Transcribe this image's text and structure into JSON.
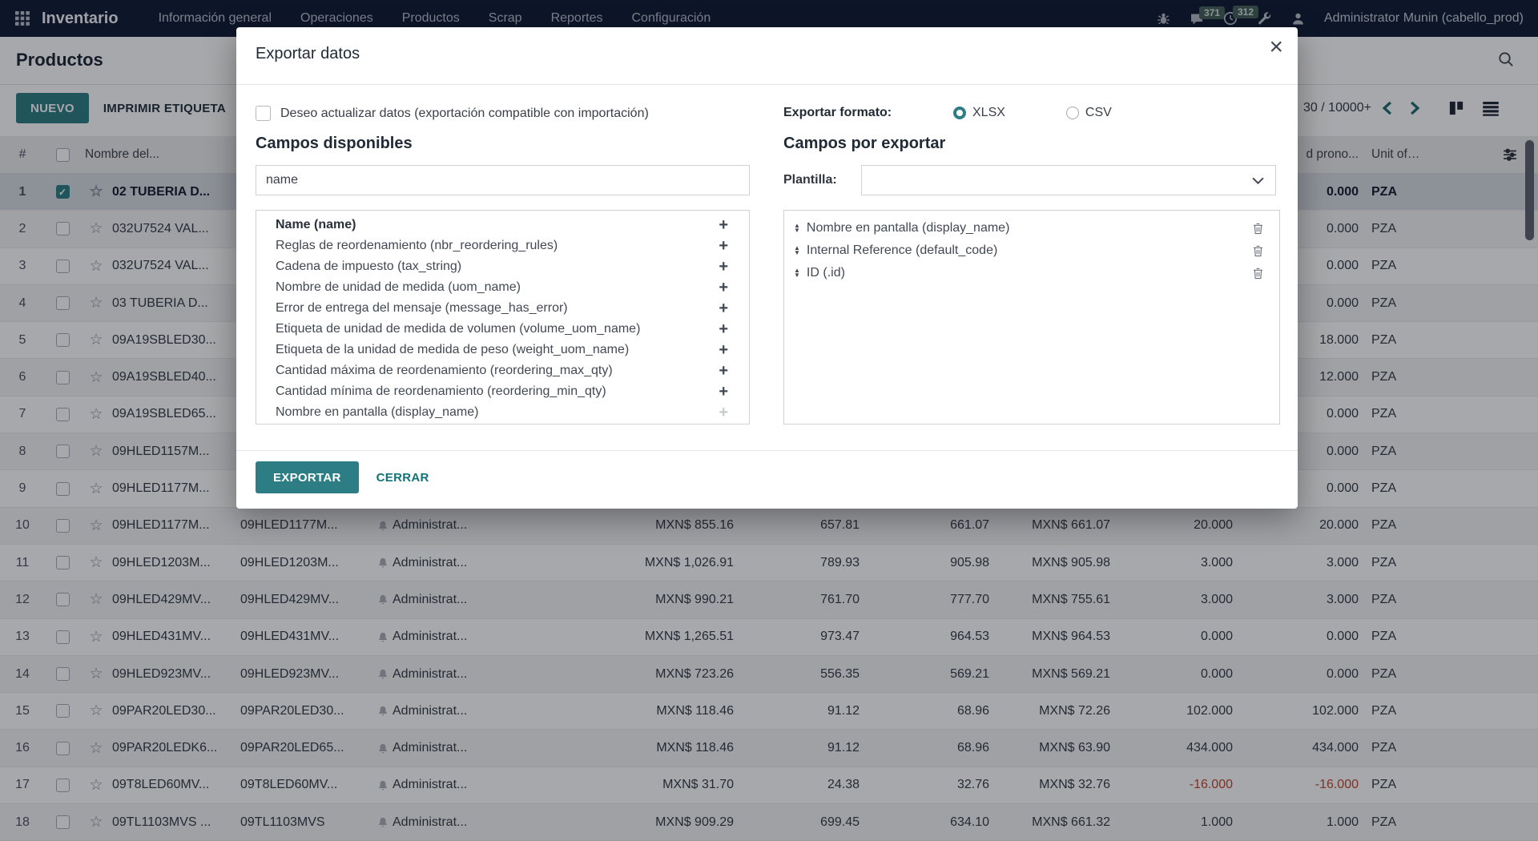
{
  "navbar": {
    "brand": "Inventario",
    "menu": [
      "Información general",
      "Operaciones",
      "Productos",
      "Scrap",
      "Reportes",
      "Configuración"
    ],
    "messages_badge": "371",
    "activities_badge": "312",
    "user": "Administrator Munin (cabello_prod)"
  },
  "page": {
    "title": "Productos",
    "new_button": "NUEVO",
    "print_label_button": "IMPRIMIR ETIQUETA",
    "pager": "30 / 10000+"
  },
  "table": {
    "headers": {
      "index": "#",
      "name": "Nombre del...",
      "forecast": "d prono...",
      "uom": "Unit of Mea..."
    },
    "rows": [
      {
        "n": 1,
        "name1": "02 TUBERIA D...",
        "forecast": "0.000",
        "uom": "PZA",
        "checked": true,
        "selected": true
      },
      {
        "n": 2,
        "name1": "032U7524 VAL...",
        "forecast": "0.000",
        "uom": "PZA"
      },
      {
        "n": 3,
        "name1": "032U7524 VAL...",
        "forecast": "0.000",
        "uom": "PZA"
      },
      {
        "n": 4,
        "name1": "03 TUBERIA D...",
        "forecast": "0.000",
        "uom": "PZA"
      },
      {
        "n": 5,
        "name1": "09A19SBLED30...",
        "forecast": "18.000",
        "uom": "PZA"
      },
      {
        "n": 6,
        "name1": "09A19SBLED40...",
        "forecast": "12.000",
        "uom": "PZA"
      },
      {
        "n": 7,
        "name1": "09A19SBLED65...",
        "forecast": "0.000",
        "uom": "PZA"
      },
      {
        "n": 8,
        "name1": "09HLED1157M...",
        "forecast": "0.000",
        "uom": "PZA"
      },
      {
        "n": 9,
        "name1": "09HLED1177M...",
        "forecast": "0.000",
        "uom": "PZA"
      },
      {
        "n": 10,
        "name1": "09HLED1177M...",
        "name2": "09HLED1177M...",
        "resp": "Administrat...",
        "price": "MXN$ 855.16",
        "num1": "657.81",
        "num2": "661.07",
        "num3": "MXN$ 661.07",
        "num4": "20.000",
        "forecast": "20.000",
        "uom": "PZA"
      },
      {
        "n": 11,
        "name1": "09HLED1203M...",
        "name2": "09HLED1203M...",
        "resp": "Administrat...",
        "price": "MXN$ 1,026.91",
        "num1": "789.93",
        "num2": "905.98",
        "num3": "MXN$ 905.98",
        "num4": "3.000",
        "forecast": "3.000",
        "uom": "PZA"
      },
      {
        "n": 12,
        "name1": "09HLED429MV...",
        "name2": "09HLED429MV...",
        "resp": "Administrat...",
        "price": "MXN$ 990.21",
        "num1": "761.70",
        "num2": "777.70",
        "num3": "MXN$ 755.61",
        "num4": "3.000",
        "forecast": "3.000",
        "uom": "PZA"
      },
      {
        "n": 13,
        "name1": "09HLED431MV...",
        "name2": "09HLED431MV...",
        "resp": "Administrat...",
        "price": "MXN$ 1,265.51",
        "num1": "973.47",
        "num2": "964.53",
        "num3": "MXN$ 964.53",
        "num4": "0.000",
        "forecast": "0.000",
        "uom": "PZA"
      },
      {
        "n": 14,
        "name1": "09HLED923MV...",
        "name2": "09HLED923MV...",
        "resp": "Administrat...",
        "price": "MXN$ 723.26",
        "num1": "556.35",
        "num2": "569.21",
        "num3": "MXN$ 569.21",
        "num4": "0.000",
        "forecast": "0.000",
        "uom": "PZA"
      },
      {
        "n": 15,
        "name1": "09PAR20LED30...",
        "name2": "09PAR20LED30...",
        "resp": "Administrat...",
        "price": "MXN$ 118.46",
        "num1": "91.12",
        "num2": "68.96",
        "num3": "MXN$ 72.26",
        "num4": "102.000",
        "forecast": "102.000",
        "uom": "PZA"
      },
      {
        "n": 16,
        "name1": "09PAR20LEDK6...",
        "name2": "09PAR20LED65...",
        "resp": "Administrat...",
        "price": "MXN$ 118.46",
        "num1": "91.12",
        "num2": "68.96",
        "num3": "MXN$ 63.90",
        "num4": "434.000",
        "forecast": "434.000",
        "uom": "PZA"
      },
      {
        "n": 17,
        "name1": "09T8LED60MV...",
        "name2": "09T8LED60MV...",
        "resp": "Administrat...",
        "price": "MXN$ 31.70",
        "num1": "24.38",
        "num2": "32.76",
        "num3": "MXN$ 32.76",
        "num4": "-16.000",
        "forecast": "-16.000",
        "uom": "PZA",
        "negative": true
      },
      {
        "n": 18,
        "name1": "09TL1103MVS ...",
        "name2": "09TL1103MVS",
        "resp": "Administrat...",
        "price": "MXN$ 909.29",
        "num1": "699.45",
        "num2": "634.10",
        "num3": "MXN$ 661.32",
        "num4": "1.000",
        "forecast": "1.000",
        "uom": "PZA"
      }
    ]
  },
  "modal": {
    "title": "Exportar datos",
    "update_data_label": "Deseo actualizar datos (exportación compatible con importación)",
    "format_label": "Exportar formato:",
    "format_options": [
      "XLSX",
      "CSV"
    ],
    "format_selected": "XLSX",
    "available_heading": "Campos disponibles",
    "search_value": "name",
    "available_fields": [
      {
        "label": "Name (name)",
        "bold": true
      },
      {
        "label": "Reglas de reordenamiento (nbr_reordering_rules)"
      },
      {
        "label": "Cadena de impuesto (tax_string)"
      },
      {
        "label": "Nombre de unidad de medida (uom_name)"
      },
      {
        "label": "Error de entrega del mensaje (message_has_error)"
      },
      {
        "label": "Etiqueta de unidad de medida de volumen (volume_uom_name)"
      },
      {
        "label": "Etiqueta de la unidad de medida de peso (weight_uom_name)"
      },
      {
        "label": "Cantidad máxima de reordenamiento (reordering_max_qty)"
      },
      {
        "label": "Cantidad mínima de reordenamiento (reordering_min_qty)"
      },
      {
        "label": "Nombre en pantalla (display_name)",
        "add_disabled": true
      }
    ],
    "export_heading": "Campos por exportar",
    "template_label": "Plantilla:",
    "template_value": "",
    "export_fields": [
      "Nombre en pantalla (display_name)",
      "Internal Reference (default_code)",
      "ID (.id)"
    ],
    "export_button": "EXPORTAR",
    "close_button": "CERRAR"
  },
  "colors": {
    "accent_teal": "#2d7e84",
    "navbar_bg": "#0f1b35",
    "badge_bg": "#45615a",
    "negative_red": "#c0462e",
    "selected_row": "#d6dbe2"
  },
  "icons": {
    "star": "☆",
    "check": "✓",
    "plus": "+",
    "close": "×",
    "drag_up": "▲",
    "drag_down": "▼"
  }
}
